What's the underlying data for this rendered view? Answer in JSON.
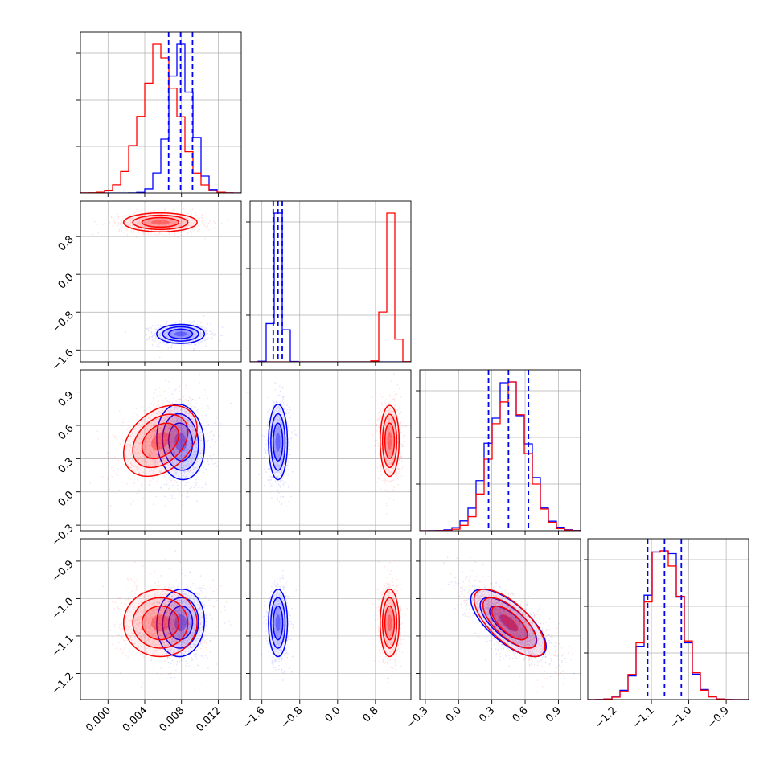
{
  "chart_data": {
    "type": "corner",
    "series": [
      {
        "name": "",
        "color": "#0000ff"
      },
      {
        "name": "",
        "color": "#ff0000"
      }
    ],
    "parameters": [
      {
        "range": [
          -0.003,
          0.0145
        ],
        "ticks": [
          0.0,
          0.004,
          0.008,
          0.012
        ],
        "tick_labels": [
          "0.000",
          "0.004",
          "0.008",
          "0.012"
        ],
        "quantiles": [
          0.0066,
          0.0079,
          0.0092
        ],
        "hist_blue": {
          "mean": 0.0079,
          "sd": 0.0013
        },
        "hist_red": {
          "mean": 0.0057,
          "sd": 0.002
        }
      },
      {
        "range": [
          -1.85,
          1.55
        ],
        "ticks": [
          -1.6,
          -0.8,
          0.0,
          0.8
        ],
        "tick_labels": [
          "−1.6",
          "−0.8",
          "0.0",
          "0.8"
        ],
        "quantiles": [
          -1.36,
          -1.26,
          -1.17
        ],
        "hist_blue": {
          "mean": -1.26,
          "sd": 0.1
        },
        "hist_red": {
          "mean": 1.1,
          "sd": 0.1
        }
      },
      {
        "range": [
          -0.35,
          1.1
        ],
        "ticks": [
          -0.3,
          0.0,
          0.3,
          0.6,
          0.9
        ],
        "tick_labels": [
          "−0.3",
          "0.0",
          "0.3",
          "0.6",
          "0.9"
        ],
        "quantiles": [
          0.27,
          0.45,
          0.63
        ],
        "hist_blue": {
          "mean": 0.45,
          "sd": 0.17
        },
        "hist_red": {
          "mean": 0.46,
          "sd": 0.16
        }
      },
      {
        "range": [
          -1.27,
          -0.84
        ],
        "ticks": [
          -1.2,
          -1.1,
          -1.0,
          -0.9
        ],
        "tick_labels": [
          "−1.2",
          "−1.1",
          "−1.0",
          "−0.9"
        ],
        "quantiles": [
          -1.11,
          -1.065,
          -1.02
        ],
        "hist_blue": {
          "mean": -1.065,
          "sd": 0.045
        },
        "hist_red": {
          "mean": -1.065,
          "sd": 0.045
        }
      }
    ],
    "pairs": [
      {
        "row": 1,
        "col": 0,
        "blue": {
          "mx": 0.0079,
          "my": -1.26,
          "sx": 0.0013,
          "sy": 0.1,
          "rho": 0.0
        },
        "red": {
          "mx": 0.0057,
          "my": 1.1,
          "sx": 0.002,
          "sy": 0.1,
          "rho": 0.0
        }
      },
      {
        "row": 2,
        "col": 0,
        "blue": {
          "mx": 0.0079,
          "my": 0.45,
          "sx": 0.0013,
          "sy": 0.17,
          "rho": -0.1
        },
        "red": {
          "mx": 0.0057,
          "my": 0.46,
          "sx": 0.002,
          "sy": 0.16,
          "rho": 0.35
        }
      },
      {
        "row": 2,
        "col": 1,
        "blue": {
          "mx": -1.26,
          "my": 0.45,
          "sx": 0.1,
          "sy": 0.17,
          "rho": 0.0
        },
        "red": {
          "mx": 1.1,
          "my": 0.46,
          "sx": 0.1,
          "sy": 0.16,
          "rho": 0.0
        }
      },
      {
        "row": 3,
        "col": 0,
        "blue": {
          "mx": 0.0079,
          "my": -1.065,
          "sx": 0.0013,
          "sy": 0.045,
          "rho": 0.05
        },
        "red": {
          "mx": 0.0057,
          "my": -1.065,
          "sx": 0.002,
          "sy": 0.045,
          "rho": 0.0
        }
      },
      {
        "row": 3,
        "col": 1,
        "blue": {
          "mx": -1.26,
          "my": -1.065,
          "sx": 0.1,
          "sy": 0.045,
          "rho": 0.0
        },
        "red": {
          "mx": 1.1,
          "my": -1.065,
          "sx": 0.1,
          "sy": 0.045,
          "rho": 0.0
        }
      },
      {
        "row": 3,
        "col": 2,
        "blue": {
          "mx": 0.45,
          "my": -1.065,
          "sx": 0.17,
          "sy": 0.045,
          "rho": -0.7
        },
        "red": {
          "mx": 0.46,
          "my": -1.065,
          "sx": 0.16,
          "sy": 0.045,
          "rho": -0.7
        }
      }
    ],
    "grid": true,
    "legend": "none"
  }
}
